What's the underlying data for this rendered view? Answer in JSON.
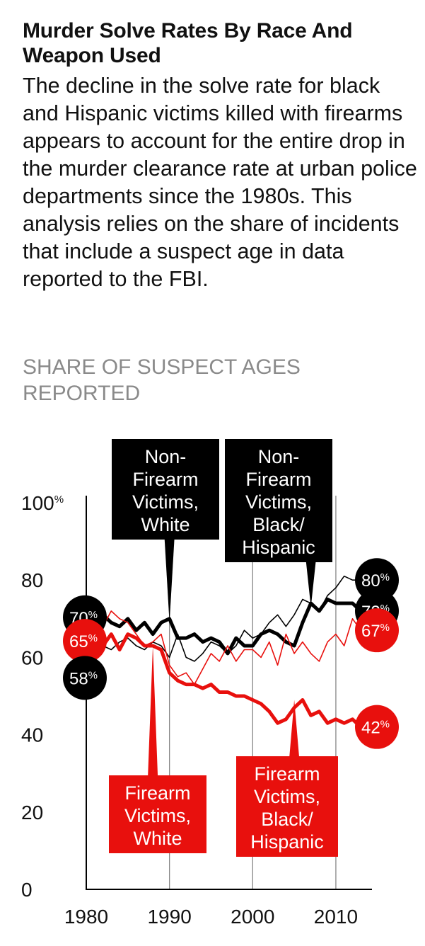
{
  "title": "Murder Solve Rates By Race And Weapon Used",
  "subtitle": "The decline in the solve rate for black and Hispanic victims killed with firearms appears to account for the entire drop in the murder clearance rate at urban police departments since the 1980s. This analysis relies on the share of incidents that include a suspect age in data reported to the FBI.",
  "colors": {
    "black": "#000000",
    "red": "#e8100d",
    "grid": "#888888",
    "white": "#ffffff"
  },
  "chart_data": {
    "type": "line",
    "ylabel": "SHARE OF SUSPECT AGES REPORTED",
    "xlim": [
      1980,
      2014
    ],
    "ylim": [
      0,
      100
    ],
    "yticks": [
      0,
      20,
      40,
      60,
      80,
      100
    ],
    "ytick_labels": [
      "0",
      "20",
      "40",
      "60",
      "80",
      "100"
    ],
    "y_unit": "%",
    "xticks": [
      1980,
      1990,
      2000,
      2010
    ],
    "xtick_labels": [
      "1980",
      "1990",
      "2000",
      "2010"
    ],
    "vertical_gridlines_at": [
      1990,
      2000,
      2010
    ],
    "series": [
      {
        "name": "Non-Firearm Victims, White",
        "color": "#000000",
        "style": "thin",
        "x": [
          1980,
          1981,
          1982,
          1983,
          1984,
          1985,
          1986,
          1987,
          1988,
          1989,
          1990,
          1991,
          1992,
          1993,
          1994,
          1995,
          1996,
          1997,
          1998,
          1999,
          2000,
          2001,
          2002,
          2003,
          2004,
          2005,
          2006,
          2007,
          2008,
          2009,
          2010,
          2011,
          2012,
          2013
        ],
        "values": [
          58,
          61,
          63,
          62,
          64,
          65,
          63,
          62,
          64,
          63,
          60,
          66,
          60,
          59,
          61,
          64,
          63,
          61,
          63,
          67,
          65,
          66,
          69,
          71,
          68,
          71,
          75,
          74,
          72,
          76,
          78,
          81,
          80,
          80
        ]
      },
      {
        "name": "Non-Firearm Victims, Black/Hispanic",
        "color": "#000000",
        "style": "thick",
        "x": [
          1980,
          1981,
          1982,
          1983,
          1984,
          1985,
          1986,
          1987,
          1988,
          1989,
          1990,
          1991,
          1992,
          1993,
          1994,
          1995,
          1996,
          1997,
          1998,
          1999,
          2000,
          2001,
          2002,
          2003,
          2004,
          2005,
          2006,
          2007,
          2008,
          2009,
          2010,
          2011,
          2012,
          2013
        ],
        "values": [
          70,
          71,
          71,
          69,
          68,
          70,
          67,
          69,
          66,
          69,
          70,
          65,
          65,
          66,
          64,
          65,
          64,
          61,
          65,
          63,
          63,
          66,
          67,
          66,
          64,
          63,
          69,
          74,
          72,
          75,
          74,
          74,
          74,
          72
        ]
      },
      {
        "name": "Firearm Victims, White",
        "color": "#e8100d",
        "style": "thin",
        "x": [
          1980,
          1981,
          1982,
          1983,
          1984,
          1985,
          1986,
          1987,
          1988,
          1989,
          1990,
          1991,
          1992,
          1993,
          1994,
          1995,
          1996,
          1997,
          1998,
          1999,
          2000,
          2001,
          2002,
          2003,
          2004,
          2005,
          2006,
          2007,
          2008,
          2009,
          2010,
          2011,
          2012,
          2013
        ],
        "values": [
          65,
          66,
          68,
          72,
          70,
          69,
          66,
          63,
          64,
          66,
          58,
          55,
          56,
          53,
          57,
          61,
          59,
          63,
          59,
          62,
          62,
          60,
          64,
          58,
          66,
          61,
          64,
          61,
          59,
          64,
          66,
          63,
          70,
          67
        ]
      },
      {
        "name": "Firearm Victims, Black/Hispanic",
        "color": "#e8100d",
        "style": "thick",
        "x": [
          1980,
          1981,
          1982,
          1983,
          1984,
          1985,
          1986,
          1987,
          1988,
          1989,
          1990,
          1991,
          1992,
          1993,
          1994,
          1995,
          1996,
          1997,
          1998,
          1999,
          2000,
          2001,
          2002,
          2003,
          2004,
          2005,
          2006,
          2007,
          2008,
          2009,
          2010,
          2011,
          2012,
          2013
        ],
        "values": [
          65,
          64,
          63,
          66,
          62,
          66,
          65,
          63,
          63,
          62,
          56,
          54,
          53,
          53,
          52,
          53,
          51,
          51,
          50,
          50,
          49,
          48,
          46,
          43,
          44,
          47,
          49,
          45,
          46,
          43,
          44,
          43,
          44,
          42
        ]
      }
    ],
    "annotations": [
      {
        "label": "Non-Firearm Victims, White",
        "lines": [
          "Non-",
          "Firearm",
          "Victims,",
          "White"
        ],
        "kind": "box",
        "color": "black",
        "points_to": [
          1990,
          69
        ]
      },
      {
        "label": "Non-Firearm Victims, Black/Hispanic",
        "lines": [
          "Non-",
          "Firearm",
          "Victims,",
          "Black/",
          "Hispanic"
        ],
        "kind": "box",
        "color": "black",
        "points_to": [
          2007,
          73
        ]
      },
      {
        "label": "Firearm Victims, White",
        "lines": [
          "Firearm",
          "Victims,",
          "White"
        ],
        "kind": "box",
        "color": "red",
        "points_to": [
          1988,
          63
        ]
      },
      {
        "label": "Firearm Victims, Black/Hispanic",
        "lines": [
          "Firearm",
          "Victims,",
          "Black/",
          "Hispanic"
        ],
        "kind": "box",
        "color": "red",
        "points_to": [
          2005,
          49
        ]
      }
    ],
    "value_labels": [
      {
        "value": "70",
        "unit": "%",
        "color": "black",
        "side": "start",
        "x": 1980,
        "y": 70
      },
      {
        "value": "65",
        "unit": "%",
        "color": "red",
        "side": "start",
        "x": 1980,
        "y": 65
      },
      {
        "value": "58",
        "unit": "%",
        "color": "black",
        "side": "start",
        "x": 1980,
        "y": 58
      },
      {
        "value": "80",
        "unit": "%",
        "color": "black",
        "side": "end",
        "x": 2013,
        "y": 80
      },
      {
        "value": "72",
        "unit": "%",
        "color": "black",
        "side": "end",
        "x": 2013,
        "y": 72
      },
      {
        "value": "67",
        "unit": "%",
        "color": "red",
        "side": "end",
        "x": 2013,
        "y": 67
      },
      {
        "value": "42",
        "unit": "%",
        "color": "red",
        "side": "end",
        "x": 2013,
        "y": 42
      }
    ]
  }
}
